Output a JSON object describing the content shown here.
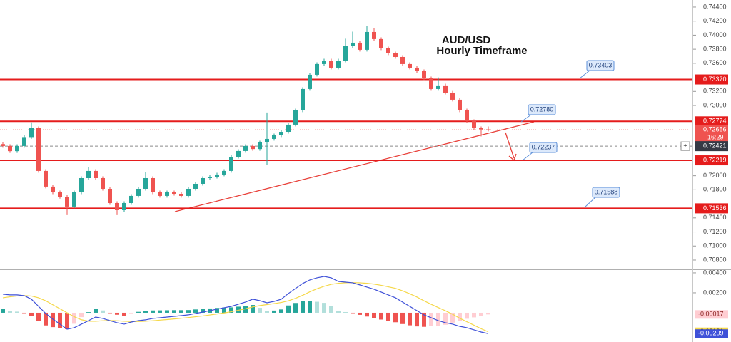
{
  "chart_data": [
    {
      "type": "candlestick",
      "title": "AUD/USD",
      "subtitle": "Hourly Timeframe",
      "open": [
        0.7245,
        0.72423,
        0.7235,
        0.72423,
        0.7255,
        0.72676,
        0.72068,
        0.71845,
        0.71763,
        0.717,
        0.71561,
        0.71763,
        0.71966,
        0.72068,
        0.71966,
        0.71814,
        0.71611,
        0.7151,
        0.71611,
        0.71713,
        0.71814,
        0.71966,
        0.71763,
        0.71713,
        0.71763,
        0.71743,
        0.71713,
        0.71814,
        0.71885,
        0.71966,
        0.71986,
        0.72017,
        0.72068,
        0.7227,
        0.72352,
        0.72423,
        0.7238,
        0.72473,
        0.72524,
        0.72575,
        0.72625,
        0.72727,
        0.7293,
        0.73234,
        0.73437,
        0.73589,
        0.73639,
        0.73538,
        0.73639,
        0.73842,
        0.73893,
        0.73792,
        0.74045,
        0.73944,
        0.73812,
        0.73741,
        0.7369,
        0.73589,
        0.73538,
        0.73487,
        0.73386,
        0.73234,
        0.73285,
        0.73183,
        0.73082,
        0.7293,
        0.72777,
        0.72676,
        0.7266
      ],
      "high": [
        0.72475,
        0.72448,
        0.72448,
        0.72575,
        0.7276,
        0.72701,
        0.72093,
        0.7187,
        0.71788,
        0.71725,
        0.71788,
        0.71991,
        0.7212,
        0.72093,
        0.71991,
        0.71839,
        0.71636,
        0.71636,
        0.71738,
        0.71839,
        0.7205,
        0.71991,
        0.71788,
        0.71788,
        0.71788,
        0.71768,
        0.71839,
        0.7191,
        0.71991,
        0.72011,
        0.72042,
        0.72093,
        0.72295,
        0.72377,
        0.72448,
        0.72448,
        0.72498,
        0.729,
        0.726,
        0.7265,
        0.72752,
        0.72955,
        0.73259,
        0.73462,
        0.73614,
        0.73664,
        0.73664,
        0.73664,
        0.7395,
        0.7405,
        0.73918,
        0.7413,
        0.741,
        0.73969,
        0.73837,
        0.73766,
        0.73715,
        0.73614,
        0.73563,
        0.73512,
        0.73411,
        0.734,
        0.7331,
        0.73207,
        0.73107,
        0.72955,
        0.72802,
        0.72701,
        0.72701
      ],
      "low": [
        0.72398,
        0.72325,
        0.72325,
        0.72398,
        0.72525,
        0.72043,
        0.7182,
        0.71738,
        0.71675,
        0.7144,
        0.71536,
        0.71738,
        0.71941,
        0.71941,
        0.71789,
        0.71586,
        0.7144,
        0.71485,
        0.71586,
        0.71688,
        0.71789,
        0.71738,
        0.71688,
        0.71688,
        0.71718,
        0.71688,
        0.71688,
        0.71789,
        0.7186,
        0.71941,
        0.71961,
        0.71992,
        0.72043,
        0.72245,
        0.72327,
        0.72355,
        0.72355,
        0.7215,
        0.72499,
        0.7255,
        0.726,
        0.72702,
        0.72905,
        0.73209,
        0.73412,
        0.73564,
        0.73513,
        0.73513,
        0.73614,
        0.73817,
        0.73767,
        0.73767,
        0.73919,
        0.73787,
        0.73716,
        0.73665,
        0.73564,
        0.73513,
        0.73462,
        0.73361,
        0.73209,
        0.73209,
        0.73158,
        0.73057,
        0.72905,
        0.72752,
        0.72651,
        0.7256,
        0.72631
      ],
      "close": [
        0.72423,
        0.7235,
        0.72423,
        0.7255,
        0.72676,
        0.72068,
        0.71845,
        0.71763,
        0.717,
        0.71561,
        0.71763,
        0.71966,
        0.72068,
        0.71966,
        0.71814,
        0.71611,
        0.7151,
        0.71611,
        0.71713,
        0.71814,
        0.71966,
        0.71763,
        0.71713,
        0.71763,
        0.71743,
        0.71713,
        0.71814,
        0.71885,
        0.71966,
        0.71986,
        0.72017,
        0.72068,
        0.7227,
        0.72352,
        0.72423,
        0.7238,
        0.72473,
        0.72524,
        0.72575,
        0.72625,
        0.72727,
        0.7293,
        0.73234,
        0.73437,
        0.73589,
        0.73639,
        0.73538,
        0.73639,
        0.73842,
        0.73893,
        0.73792,
        0.74045,
        0.73944,
        0.73812,
        0.73741,
        0.7369,
        0.73589,
        0.73538,
        0.73487,
        0.73386,
        0.73234,
        0.73285,
        0.73183,
        0.73082,
        0.7293,
        0.72777,
        0.72676,
        0.7266,
        0.72656
      ],
      "up_color": "#26a69a",
      "down_color": "#ef5350",
      "ylim": [
        0.70668,
        0.74501
      ],
      "yticks": [
        {
          "value": 0.744,
          "label": "0.74400"
        },
        {
          "value": 0.742,
          "label": "0.74200"
        },
        {
          "value": 0.74,
          "label": "0.74000"
        },
        {
          "value": 0.738,
          "label": "0.73800"
        },
        {
          "value": 0.736,
          "label": "0.73600"
        },
        {
          "value": 0.732,
          "label": "0.73200"
        },
        {
          "value": 0.73,
          "label": "0.73000"
        },
        {
          "value": 0.72,
          "label": "0.72000"
        },
        {
          "value": 0.718,
          "label": "0.71800"
        },
        {
          "value": 0.714,
          "label": "0.71400"
        },
        {
          "value": 0.712,
          "label": "0.71200"
        },
        {
          "value": 0.71,
          "label": "0.71000"
        },
        {
          "value": 0.708,
          "label": "0.70800"
        }
      ],
      "levels": [
        {
          "value": 0.7337,
          "label": "0.73370"
        },
        {
          "value": 0.72774,
          "label": "0.72774"
        },
        {
          "value": 0.72219,
          "label": "0.72219"
        },
        {
          "value": 0.71536,
          "label": "0.71536"
        }
      ],
      "level_color": "#e51c1c",
      "annotations": [
        "0.73403",
        "0.72780",
        "0.72237",
        "0.71588"
      ],
      "last_price": {
        "value": 0.72656,
        "label": "0.72656"
      },
      "countdown": "16:29",
      "crosshair": {
        "value": 0.72421,
        "label": "0.72421"
      }
    },
    {
      "type": "macd",
      "series": [
        {
          "color": "#3f51d8",
          "values": [
            0.00186,
            0.00179,
            0.00179,
            0.00171,
            0.00136,
            0.00064,
            -7e-05,
            -0.00064,
            -0.00114,
            -0.00164,
            -0.0015,
            -0.00114,
            -0.00079,
            -0.00043,
            -0.00057,
            -0.00079,
            -0.001,
            -0.00114,
            -0.00093,
            -0.00079,
            -0.00071,
            -0.00057,
            -0.0005,
            -0.00043,
            -0.00036,
            -0.00029,
            -0.00021,
            -7e-05,
            7e-05,
            0.00021,
            0.00036,
            0.0005,
            0.00064,
            0.00086,
            0.00107,
            0.00136,
            0.00121,
            0.001,
            0.00114,
            0.00136,
            0.00193,
            0.00243,
            0.00293,
            0.00329,
            0.0035,
            0.00364,
            0.0035,
            0.00314,
            0.00307,
            0.003,
            0.00279,
            0.00257,
            0.00236,
            0.00207,
            0.00179,
            0.0015,
            0.00107,
            0.00064,
            0.00021,
            -0.00021,
            -0.0005,
            -0.00079,
            -0.001,
            -0.00114,
            -0.00136,
            -0.0015,
            -0.00171,
            -0.00193,
            -0.00209
          ]
        },
        {
          "color": "#f5d84a",
          "values": [
            0.0015,
            0.0016,
            0.00168,
            0.00172,
            0.00168,
            0.0015,
            0.0012,
            0.0008,
            0.0004,
            0,
            -0.0004,
            -0.0007,
            -0.00085,
            -0.00085,
            -0.0008,
            -0.00078,
            -0.0008,
            -0.00085,
            -0.00088,
            -0.00088,
            -0.00085,
            -0.0008,
            -0.00074,
            -0.00068,
            -0.00062,
            -0.00055,
            -0.00048,
            -0.0004,
            -0.00032,
            -0.00022,
            -0.00012,
            -2e-05,
            0.0001,
            0.00025,
            0.0004,
            0.00058,
            0.00072,
            0.00082,
            0.00092,
            0.00103,
            0.0012,
            0.00145,
            0.00175,
            0.0021,
            0.0024,
            0.00265,
            0.00285,
            0.00295,
            0.003,
            0.00302,
            0.003,
            0.00295,
            0.00287,
            0.00275,
            0.0026,
            0.00245,
            0.0022,
            0.0019,
            0.00158,
            0.0012,
            0.00085,
            0.00052,
            0.0002,
            -0.00015,
            -0.00055,
            -0.0009,
            -0.00125,
            -0.0016,
            -0.00191
          ]
        }
      ],
      "histogram": {
        "colors": [
          "#26a69a",
          "#b2dfdb",
          "#ef5350",
          "#ffcdd2"
        ],
        "values": [
          0.00036,
          0.00019,
          0.00011,
          -1e-05,
          -0.00032,
          -0.00086,
          -0.00127,
          -0.00144,
          -0.00154,
          -0.00164,
          -0.0011,
          -0.00044,
          6e-05,
          0.00042,
          0.00023,
          -1e-05,
          -0.0002,
          -0.00029,
          -5e-05,
          9e-05,
          0.00014,
          0.00023,
          0.00024,
          0.00025,
          0.00026,
          0.00026,
          0.00027,
          0.00033,
          0.00039,
          0.00043,
          0.00048,
          0.00052,
          0.00054,
          0.00061,
          0.00067,
          0.00078,
          0.00049,
          0.00018,
          0.00022,
          0.00033,
          0.00073,
          0.00098,
          0.00118,
          0.00119,
          0.0011,
          0.00099,
          0.00065,
          0.00019,
          7e-05,
          -2e-05,
          -0.00021,
          -0.00038,
          -0.00051,
          -0.00068,
          -0.00081,
          -0.00095,
          -0.00113,
          -0.00126,
          -0.00137,
          -0.00141,
          -0.00135,
          -0.00131,
          -0.0012,
          -0.00099,
          -0.00081,
          -0.0006,
          -0.00046,
          -0.00033,
          -0.00017
        ]
      },
      "ylim": [
        -0.00293,
        0.00421
      ],
      "yticks": [
        {
          "value": 0.004,
          "label": "0.00400"
        },
        {
          "value": 0.002,
          "label": "0.00200"
        }
      ]
    }
  ]
}
